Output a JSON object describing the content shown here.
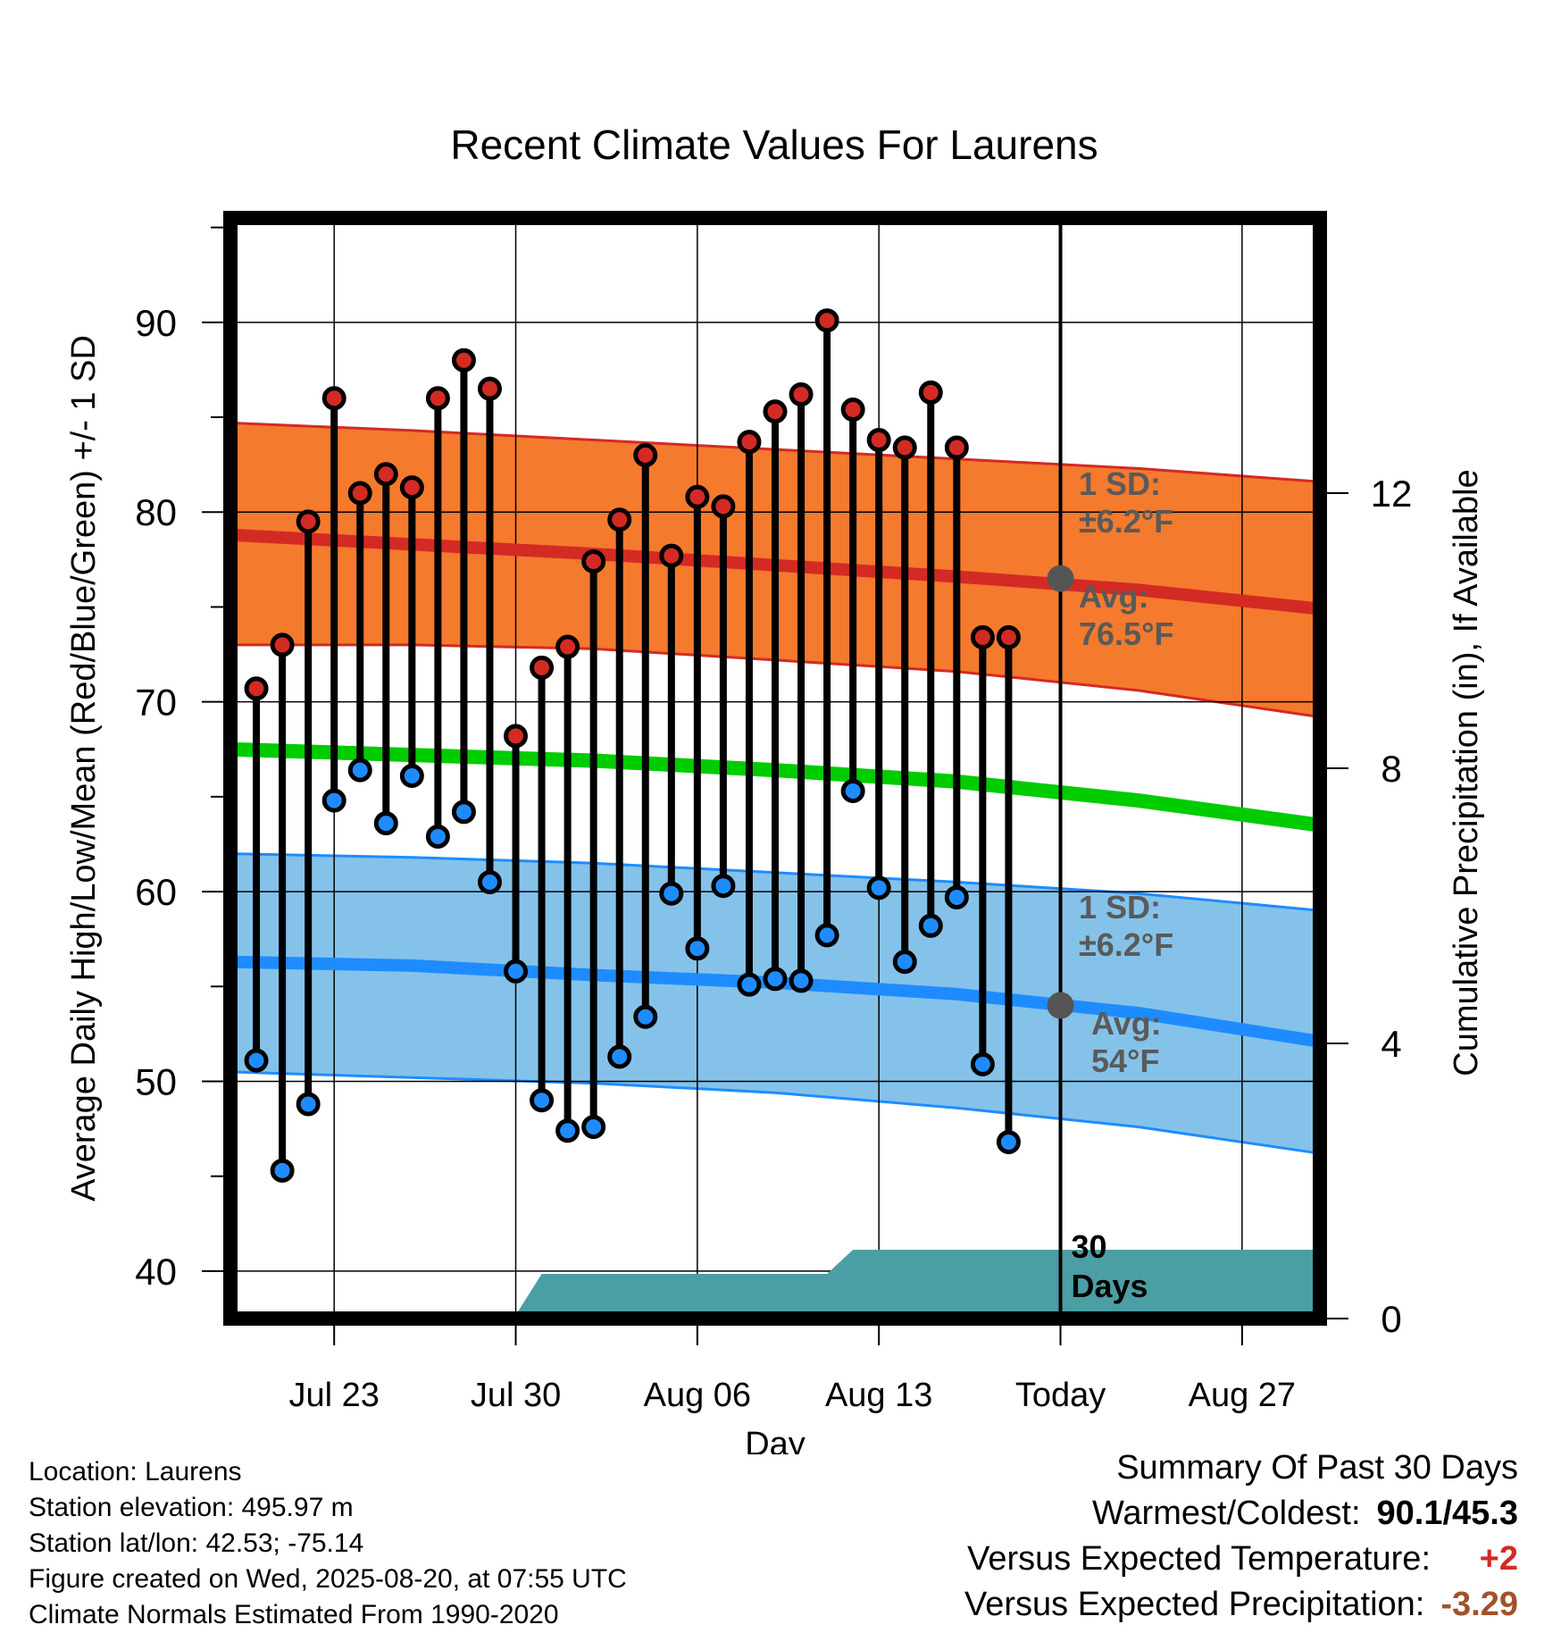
{
  "chart_data": {
    "type": "line",
    "title": "Recent Climate Values For Laurens",
    "xlabel": "Day",
    "ylabel": "Average Daily High/Low/Mean (Red/Blue/Green) +/- 1 SD",
    "y2label": "Cumulative Precipitation (in), If Available",
    "ylim": [
      37.5,
      95.5
    ],
    "y2lim": [
      0,
      16
    ],
    "yticks": [
      40,
      50,
      60,
      70,
      80,
      90
    ],
    "y2ticks": [
      0,
      4,
      8,
      12
    ],
    "xlim": [
      "2025-07-19",
      "2025-08-30"
    ],
    "xticks": [
      {
        "date": "2025-07-23",
        "label": "Jul 23"
      },
      {
        "date": "2025-07-30",
        "label": "Jul 30"
      },
      {
        "date": "2025-08-06",
        "label": "Aug 06"
      },
      {
        "date": "2025-08-13",
        "label": "Aug 13"
      },
      {
        "date": "2025-08-20",
        "label": "Today"
      },
      {
        "date": "2025-08-27",
        "label": "Aug 27"
      }
    ],
    "grid": true,
    "today": "2025-08-20",
    "today_label": "30 Days",
    "daily": {
      "dates": [
        "2025-07-20",
        "2025-07-21",
        "2025-07-22",
        "2025-07-23",
        "2025-07-24",
        "2025-07-25",
        "2025-07-26",
        "2025-07-27",
        "2025-07-28",
        "2025-07-29",
        "2025-07-30",
        "2025-07-31",
        "2025-08-01",
        "2025-08-02",
        "2025-08-03",
        "2025-08-04",
        "2025-08-05",
        "2025-08-06",
        "2025-08-07",
        "2025-08-08",
        "2025-08-09",
        "2025-08-10",
        "2025-08-11",
        "2025-08-12",
        "2025-08-13",
        "2025-08-14",
        "2025-08-15",
        "2025-08-16",
        "2025-08-17",
        "2025-08-18",
        "2025-08-19"
      ],
      "high": [
        70.7,
        73.0,
        79.5,
        86.0,
        81.0,
        82.0,
        81.3,
        86.0,
        88.0,
        86.5,
        68.2,
        71.8,
        72.9,
        77.4,
        79.6,
        83.0,
        77.7,
        80.8,
        80.3,
        83.7,
        85.3,
        86.2,
        90.1,
        85.4,
        83.8,
        83.4,
        86.3,
        83.4,
        73.4,
        73.4,
        null
      ],
      "low": [
        51.1,
        45.3,
        48.8,
        64.8,
        66.4,
        63.6,
        66.1,
        62.9,
        64.2,
        60.5,
        55.8,
        49.0,
        47.4,
        47.6,
        51.3,
        53.4,
        59.9,
        57.0,
        60.3,
        55.1,
        55.4,
        55.3,
        57.7,
        65.3,
        60.2,
        56.3,
        58.2,
        59.7,
        50.9,
        46.8,
        null
      ]
    },
    "normals": {
      "dates": [
        "2025-07-19",
        "2025-07-26",
        "2025-08-02",
        "2025-08-09",
        "2025-08-16",
        "2025-08-23",
        "2025-08-30"
      ],
      "high_avg": [
        78.8,
        78.3,
        77.8,
        77.2,
        76.6,
        75.9,
        74.9
      ],
      "high_sd_upper": [
        84.7,
        84.3,
        83.8,
        83.3,
        82.8,
        82.3,
        81.6
      ],
      "high_sd_lower": [
        73.0,
        73.0,
        72.8,
        72.2,
        71.6,
        70.6,
        69.2
      ],
      "mean": [
        67.5,
        67.2,
        66.9,
        66.4,
        65.8,
        64.8,
        63.5
      ],
      "low_avg": [
        56.3,
        56.1,
        55.6,
        55.2,
        54.6,
        53.6,
        52.1
      ],
      "low_sd_upper": [
        62.0,
        61.8,
        61.5,
        61.0,
        60.5,
        59.9,
        59.0
      ],
      "low_sd_lower": [
        50.5,
        50.2,
        49.9,
        49.4,
        48.6,
        47.6,
        46.2
      ]
    },
    "precip": {
      "dates": [
        "2025-07-19",
        "2025-07-26",
        "2025-07-26",
        "2025-07-30",
        "2025-07-31",
        "2025-08-11",
        "2025-08-12",
        "2025-08-20",
        "2025-08-30"
      ],
      "cumulative": [
        0,
        0,
        0.05,
        0.05,
        0.65,
        0.65,
        1.0,
        1.0,
        1.0
      ]
    },
    "annotations": {
      "high_sd": "1 SD:",
      "high_sd_value": "±6.2°F",
      "high_avg_label": "Avg:",
      "high_avg_value": "76.5°F",
      "high_avg_today": 76.5,
      "low_sd": "1 SD:",
      "low_sd_value": "±6.2°F",
      "low_avg_label": "Avg:",
      "low_avg_value": "54°F",
      "low_avg_today": 54.0
    },
    "colors": {
      "high_band": "#f47a2e",
      "high_line": "#d42a24",
      "low_band": "#85c2e9",
      "low_line": "#1e8cff",
      "mean_line": "#00cc00",
      "precip": "#4a9ea4",
      "high_dot": "#d42a24",
      "low_dot": "#1e8cff",
      "annotation": "#5a5a5a"
    }
  },
  "info": {
    "location": "Location: Laurens",
    "elevation": "Station elevation: 495.97 m",
    "latlon": "Station lat/lon: 42.53; -75.14",
    "created": "Figure created on Wed, 2025-08-20, at 07:55 UTC",
    "normals": "Climate Normals Estimated From 1990-2020"
  },
  "summary": {
    "title": "Summary Of Past 30 Days",
    "warmest_label": "Warmest/Coldest:",
    "warmest_value": "90.1/45.3",
    "temp_label": "Versus Expected Temperature:",
    "temp_value": "+2",
    "temp_color": "#d42a24",
    "precip_label": "Versus Expected Precipitation:",
    "precip_value": "-3.29",
    "precip_color": "#a0522d"
  }
}
